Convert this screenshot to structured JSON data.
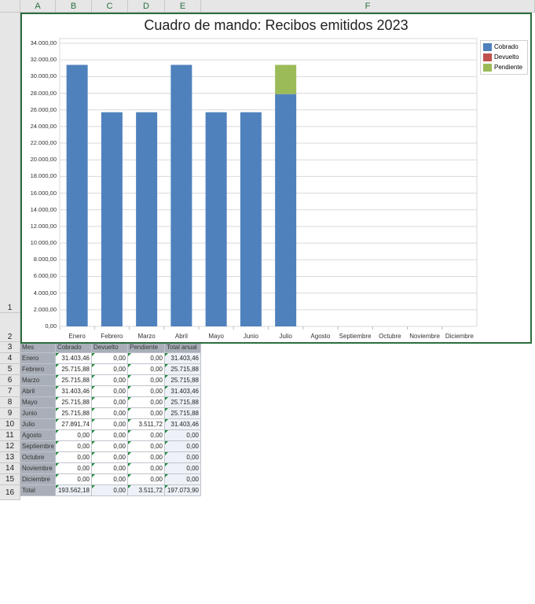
{
  "sheet": {
    "columns": [
      "A",
      "B",
      "C",
      "D",
      "E",
      "F"
    ],
    "rows": [
      "1",
      "2",
      "3",
      "4",
      "5",
      "6",
      "7",
      "8",
      "9",
      "10",
      "11",
      "12",
      "13",
      "14",
      "15",
      "16"
    ]
  },
  "chart": {
    "title": "Cuadro de mando: Recibos emitidos 2023"
  },
  "chart_data": {
    "type": "bar",
    "stacked": true,
    "title": "Cuadro de mando: Recibos emitidos 2023",
    "categories": [
      "Enero",
      "Febrero",
      "Marzo",
      "Abril",
      "Mayo",
      "Junio",
      "Julio",
      "Agosto",
      "Septiembre",
      "Octubre",
      "Noviembre",
      "Diciembre"
    ],
    "series": [
      {
        "name": "Cobrado",
        "color": "#4f81bd",
        "values": [
          31403.46,
          25715.88,
          25715.88,
          31403.46,
          25715.88,
          25715.88,
          27891.74,
          0,
          0,
          0,
          0,
          0
        ]
      },
      {
        "name": "Devuelto",
        "color": "#c0504d",
        "values": [
          0,
          0,
          0,
          0,
          0,
          0,
          0,
          0,
          0,
          0,
          0,
          0
        ]
      },
      {
        "name": "Pendiente",
        "color": "#9bbb59",
        "values": [
          0,
          0,
          0,
          0,
          0,
          0,
          3511.72,
          0,
          0,
          0,
          0,
          0
        ]
      }
    ],
    "ylim": [
      0,
      34000
    ],
    "yticks": [
      "0,00",
      "2.000,00",
      "4.000,00",
      "6.000,00",
      "8.000,00",
      "10.000,00",
      "12.000,00",
      "14.000,00",
      "16.000,00",
      "18.000,00",
      "20.000,00",
      "22.000,00",
      "24.000,00",
      "26.000,00",
      "28.000,00",
      "30.000,00",
      "32.000,00",
      "34.000,00"
    ],
    "grid": true,
    "legend": "right"
  },
  "table": {
    "headers": [
      "Mes",
      "Cobrado",
      "Devuelto",
      "Pendiente",
      "Total anual"
    ],
    "rows": [
      [
        "Enero",
        "31.403,46",
        "0,00",
        "0,00",
        "31.403,46"
      ],
      [
        "Febrero",
        "25.715,88",
        "0,00",
        "0,00",
        "25.715,88"
      ],
      [
        "Marzo",
        "25.715,88",
        "0,00",
        "0,00",
        "25.715,88"
      ],
      [
        "Abril",
        "31.403,46",
        "0,00",
        "0,00",
        "31.403,46"
      ],
      [
        "Mayo",
        "25.715,88",
        "0,00",
        "0,00",
        "25.715,88"
      ],
      [
        "Junio",
        "25.715,88",
        "0,00",
        "0,00",
        "25.715,88"
      ],
      [
        "Julio",
        "27.891,74",
        "0,00",
        "3.511,72",
        "31.403,46"
      ],
      [
        "Agosto",
        "0,00",
        "0,00",
        "0,00",
        "0,00"
      ],
      [
        "Septiembre",
        "0,00",
        "0,00",
        "0,00",
        "0,00"
      ],
      [
        "Octubre",
        "0,00",
        "0,00",
        "0,00",
        "0,00"
      ],
      [
        "Noviembre",
        "0,00",
        "0,00",
        "0,00",
        "0,00"
      ],
      [
        "Diciembre",
        "0,00",
        "0,00",
        "0,00",
        "0,00"
      ],
      [
        "Total",
        "193.562,18",
        "0,00",
        "3.511,72",
        "197.073,90"
      ]
    ]
  }
}
